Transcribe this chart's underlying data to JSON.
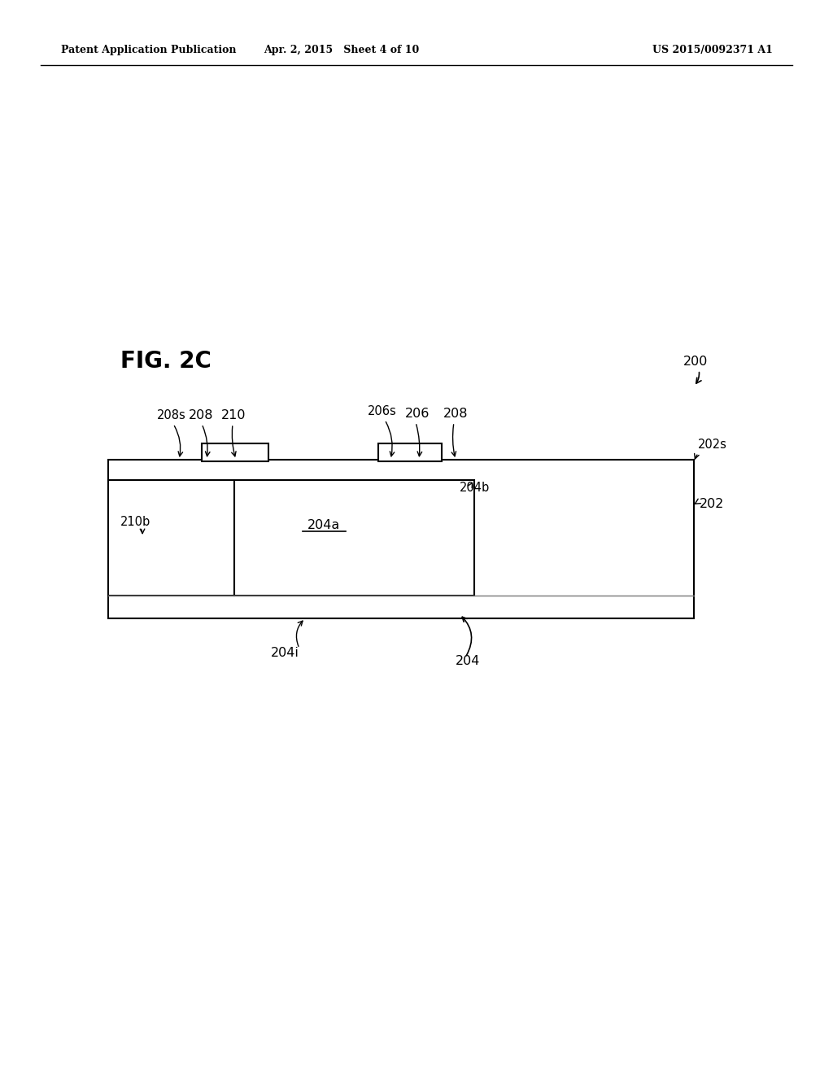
{
  "bg_color": "#ffffff",
  "header_left": "Patent Application Publication",
  "header_mid": "Apr. 2, 2015   Sheet 4 of 10",
  "header_right": "US 2015/0092371 A1",
  "fig_label": "FIG. 2C"
}
